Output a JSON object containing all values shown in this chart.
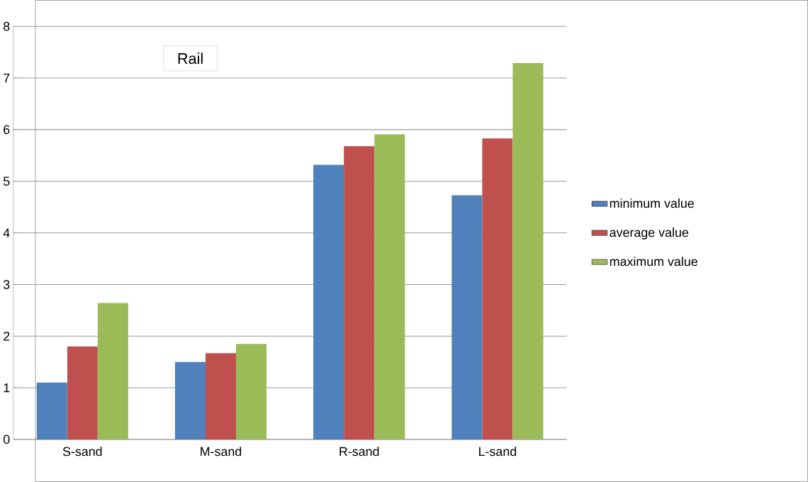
{
  "chart_data": {
    "type": "bar",
    "title": "Rail",
    "categories": [
      "S-sand",
      "M-sand",
      "R-sand",
      "L-sand"
    ],
    "series": [
      {
        "name": "minimum value",
        "color": "#4f81bd",
        "values": [
          1.1,
          1.5,
          5.32,
          4.73
        ]
      },
      {
        "name": "average value",
        "color": "#c0504d",
        "values": [
          1.8,
          1.67,
          5.68,
          5.83
        ]
      },
      {
        "name": "maximum value",
        "color": "#9bbb59",
        "values": [
          2.64,
          1.85,
          5.91,
          7.29
        ]
      }
    ],
    "ylim": [
      0,
      8
    ],
    "yticks": [
      0,
      1,
      2,
      3,
      4,
      5,
      6,
      7,
      8
    ],
    "grid": "y",
    "legend": "right"
  }
}
